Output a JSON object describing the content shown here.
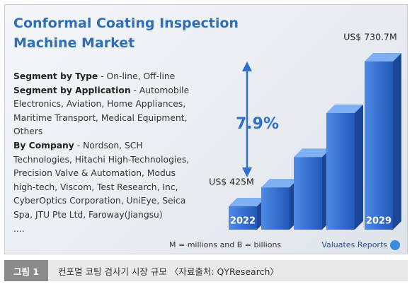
{
  "chart_data": {
    "type": "bar",
    "title": "Conformal Coating Inspection Machine Market",
    "categories": [
      "2022",
      null,
      null,
      null,
      "2029"
    ],
    "values": [
      425,
      465,
      529,
      622,
      730.7
    ],
    "value_labels": [
      "US$ 425M",
      null,
      null,
      null,
      "US$ 730.7M"
    ],
    "color": "#2f6fd0",
    "annotations": [
      "7.9%"
    ],
    "footnote": "M = millions and B = billions"
  },
  "segments": [
    {
      "label": "Segment by Type",
      "text": "- On-line, Off-line"
    },
    {
      "label": "Segment by Application",
      "text": "- Automobile Electronics, Aviation, Home Appliances, Maritime Transport, Medical Equipment, Others"
    },
    {
      "label": "By Company",
      "text": "- Nordson, SCH Technologies, Hitachi High-Technologies, Precision Valve & Automation, Modus high-tech, Viscom, Test Research, Inc, CyberOptics Corporation, UniEye, Seica Spa, JTU Pte Ltd, Faroway(Jiangsu)"
    }
  ],
  "ellipsis": "....",
  "logo": "Valuates Reports",
  "caption": {
    "label": "그림 1",
    "text": "컨포멀 코팅 검사기 시장 규모 〈자료출처: QYResearch〉"
  }
}
